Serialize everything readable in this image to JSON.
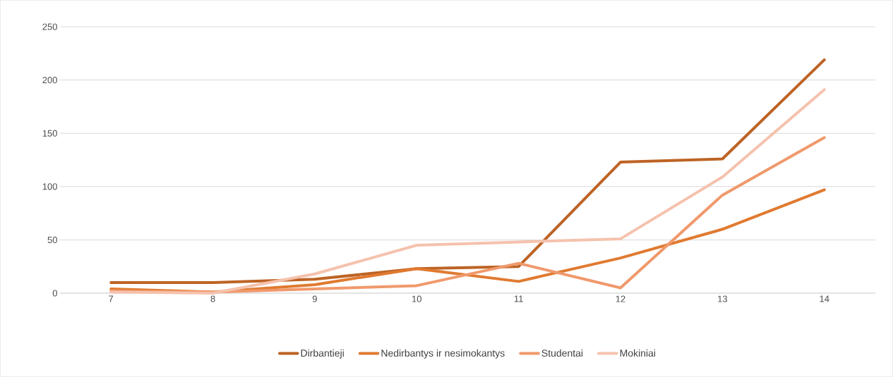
{
  "chart_data": {
    "type": "line",
    "categories": [
      "7",
      "8",
      "9",
      "10",
      "11",
      "12",
      "13",
      "14"
    ],
    "series": [
      {
        "name": "Dirbantieji",
        "color": "#bd6325",
        "values": [
          10,
          10,
          13,
          23,
          25,
          123,
          126,
          219
        ]
      },
      {
        "name": "Nedirbantys ir nesimokantys",
        "color": "#e07a30",
        "values": [
          4,
          1,
          8,
          23,
          11,
          33,
          60,
          97
        ]
      },
      {
        "name": "Studentai",
        "color": "#f0996c",
        "values": [
          2,
          1,
          4,
          7,
          28,
          5,
          92,
          146
        ]
      },
      {
        "name": "Mokiniai",
        "color": "#f5c2ad",
        "values": [
          1,
          0,
          18,
          45,
          48,
          51,
          109,
          191
        ]
      }
    ],
    "ylim": [
      0,
      250
    ],
    "yticks": [
      0,
      50,
      100,
      150,
      200,
      250
    ],
    "grid": "y",
    "legend": "bottom",
    "marker": "none",
    "line_style": "solid"
  }
}
